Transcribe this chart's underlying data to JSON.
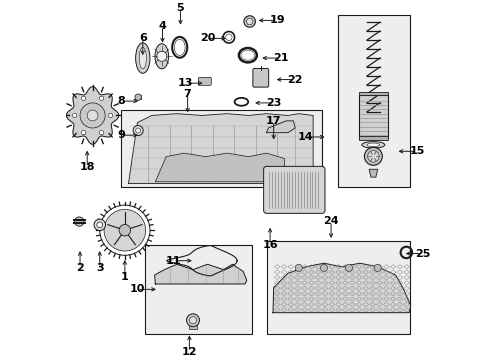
{
  "bg_color": "#ffffff",
  "fig_width": 4.9,
  "fig_height": 3.6,
  "dpi": 100,
  "lc": "#1a1a1a",
  "lc2": "#555555",
  "label_fs": 8.0,
  "parts_labels": {
    "1": [
      0.165,
      0.285,
      0.0,
      -0.055
    ],
    "2": [
      0.04,
      0.31,
      0.0,
      -0.055
    ],
    "3": [
      0.095,
      0.31,
      0.0,
      -0.055
    ],
    "4": [
      0.27,
      0.875,
      0.0,
      0.055
    ],
    "5": [
      0.32,
      0.925,
      0.0,
      0.055
    ],
    "6": [
      0.215,
      0.84,
      0.0,
      0.055
    ],
    "7": [
      0.34,
      0.68,
      0.0,
      0.06
    ],
    "8": [
      0.21,
      0.72,
      -0.055,
      0.0
    ],
    "9": [
      0.21,
      0.625,
      -0.055,
      0.0
    ],
    "10": [
      0.26,
      0.195,
      -0.06,
      0.0
    ],
    "11": [
      0.36,
      0.275,
      -0.06,
      0.0
    ],
    "12": [
      0.345,
      0.075,
      0.0,
      -0.055
    ],
    "13": [
      0.39,
      0.77,
      -0.055,
      0.0
    ],
    "14": [
      0.73,
      0.62,
      -0.06,
      0.0
    ],
    "15": [
      0.92,
      0.58,
      0.06,
      0.0
    ],
    "16": [
      0.57,
      0.375,
      0.0,
      -0.055
    ],
    "17": [
      0.58,
      0.605,
      0.0,
      0.06
    ],
    "18": [
      0.06,
      0.59,
      0.0,
      -0.055
    ],
    "19": [
      0.53,
      0.945,
      0.06,
      0.0
    ],
    "20": [
      0.455,
      0.895,
      -0.06,
      0.0
    ],
    "21": [
      0.54,
      0.84,
      0.06,
      0.0
    ],
    "22": [
      0.58,
      0.78,
      0.06,
      0.0
    ],
    "23": [
      0.52,
      0.715,
      0.06,
      0.0
    ],
    "24": [
      0.74,
      0.33,
      0.0,
      0.055
    ],
    "25": [
      0.94,
      0.295,
      0.055,
      0.0
    ]
  }
}
